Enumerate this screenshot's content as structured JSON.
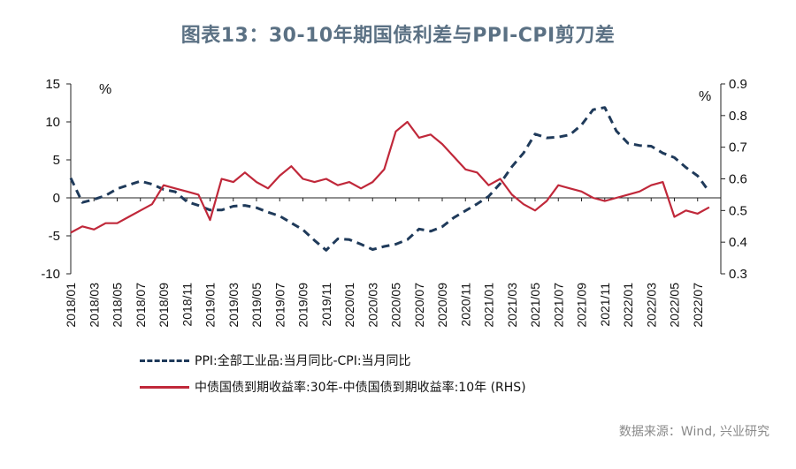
{
  "title": "图表13：30-10年期国债利差与PPI-CPI剪刀差",
  "source": "数据来源：Wind, 兴业研究",
  "chart_data": {
    "type": "line",
    "left_axis": {
      "unit": "%",
      "ylim": [
        -10,
        15
      ],
      "ticks": [
        15,
        10,
        5,
        0,
        -5,
        -10
      ]
    },
    "right_axis": {
      "unit": "%",
      "ylim": [
        0.3,
        0.9
      ],
      "ticks": [
        0.9,
        0.8,
        0.7,
        0.6,
        0.5,
        0.4,
        0.3
      ]
    },
    "x_labels": [
      "2018/01",
      "2018/03",
      "2018/05",
      "2018/07",
      "2018/09",
      "2018/11",
      "2019/01",
      "2019/03",
      "2019/05",
      "2019/07",
      "2019/09",
      "2019/11",
      "2020/01",
      "2020/03",
      "2020/05",
      "2020/07",
      "2020/09",
      "2020/11",
      "2021/01",
      "2021/03",
      "2021/05",
      "2021/07",
      "2021/09",
      "2021/11",
      "2022/01",
      "2022/03",
      "2022/05",
      "2022/07"
    ],
    "series": [
      {
        "name": "PPI:全部工业品:当月同比-CPI:当月同比",
        "axis": "left",
        "style": "dashed",
        "color": "#1f3a5a",
        "x": [
          "2018/01",
          "2018/02",
          "2018/03",
          "2018/04",
          "2018/05",
          "2018/06",
          "2018/07",
          "2018/08",
          "2018/09",
          "2018/10",
          "2018/11",
          "2018/12",
          "2019/01",
          "2019/02",
          "2019/03",
          "2019/04",
          "2019/05",
          "2019/06",
          "2019/07",
          "2019/08",
          "2019/09",
          "2019/10",
          "2019/11",
          "2019/12",
          "2020/01",
          "2020/02",
          "2020/03",
          "2020/04",
          "2020/05",
          "2020/06",
          "2020/07",
          "2020/08",
          "2020/09",
          "2020/10",
          "2020/11",
          "2020/12",
          "2021/01",
          "2021/02",
          "2021/03",
          "2021/04",
          "2021/05",
          "2021/06",
          "2021/07",
          "2021/08",
          "2021/09",
          "2021/10",
          "2021/11",
          "2021/12",
          "2022/01",
          "2022/02",
          "2022/03",
          "2022/04",
          "2022/05",
          "2022/06",
          "2022/07",
          "2022/08"
        ],
        "values": [
          2.6,
          -0.6,
          -0.2,
          0.3,
          1.2,
          1.7,
          2.2,
          1.8,
          1.1,
          0.8,
          -0.5,
          -1.0,
          -1.6,
          -1.6,
          -1.1,
          -1.0,
          -1.3,
          -1.9,
          -2.4,
          -3.3,
          -4.2,
          -5.6,
          -6.9,
          -5.4,
          -5.5,
          -6.1,
          -6.8,
          -6.4,
          -6.1,
          -5.5,
          -4.1,
          -4.4,
          -3.8,
          -2.6,
          -1.7,
          -0.8,
          0.2,
          1.9,
          4.1,
          5.9,
          8.4,
          7.9,
          8.0,
          8.3,
          9.6,
          11.6,
          11.9,
          8.8,
          7.2,
          6.9,
          6.8,
          5.9,
          5.3,
          4.0,
          2.9,
          0.8
        ]
      },
      {
        "name": "中债国债到期收益率:30年-中债国债到期收益率:10年 (RHS)",
        "axis": "right",
        "style": "solid",
        "color": "#c0283a",
        "x": [
          "2018/01",
          "2018/02",
          "2018/03",
          "2018/04",
          "2018/05",
          "2018/06",
          "2018/07",
          "2018/08",
          "2018/09",
          "2018/10",
          "2018/11",
          "2018/12",
          "2019/01",
          "2019/02",
          "2019/03",
          "2019/04",
          "2019/05",
          "2019/06",
          "2019/07",
          "2019/08",
          "2019/09",
          "2019/10",
          "2019/11",
          "2019/12",
          "2020/01",
          "2020/02",
          "2020/03",
          "2020/04",
          "2020/05",
          "2020/06",
          "2020/07",
          "2020/08",
          "2020/09",
          "2020/10",
          "2020/11",
          "2020/12",
          "2021/01",
          "2021/02",
          "2021/03",
          "2021/04",
          "2021/05",
          "2021/06",
          "2021/07",
          "2021/08",
          "2021/09",
          "2021/10",
          "2021/11",
          "2021/12",
          "2022/01",
          "2022/02",
          "2022/03",
          "2022/04",
          "2022/05",
          "2022/06",
          "2022/07",
          "2022/08"
        ],
        "values": [
          0.43,
          0.45,
          0.44,
          0.46,
          0.46,
          0.48,
          0.5,
          0.52,
          0.58,
          0.57,
          0.56,
          0.55,
          0.47,
          0.6,
          0.59,
          0.62,
          0.59,
          0.57,
          0.61,
          0.64,
          0.6,
          0.59,
          0.6,
          0.58,
          0.59,
          0.57,
          0.59,
          0.63,
          0.75,
          0.78,
          0.73,
          0.74,
          0.71,
          0.67,
          0.63,
          0.62,
          0.58,
          0.6,
          0.55,
          0.52,
          0.5,
          0.53,
          0.58,
          0.57,
          0.56,
          0.54,
          0.53,
          0.54,
          0.55,
          0.56,
          0.58,
          0.59,
          0.48,
          0.5,
          0.49,
          0.51
        ]
      }
    ]
  }
}
